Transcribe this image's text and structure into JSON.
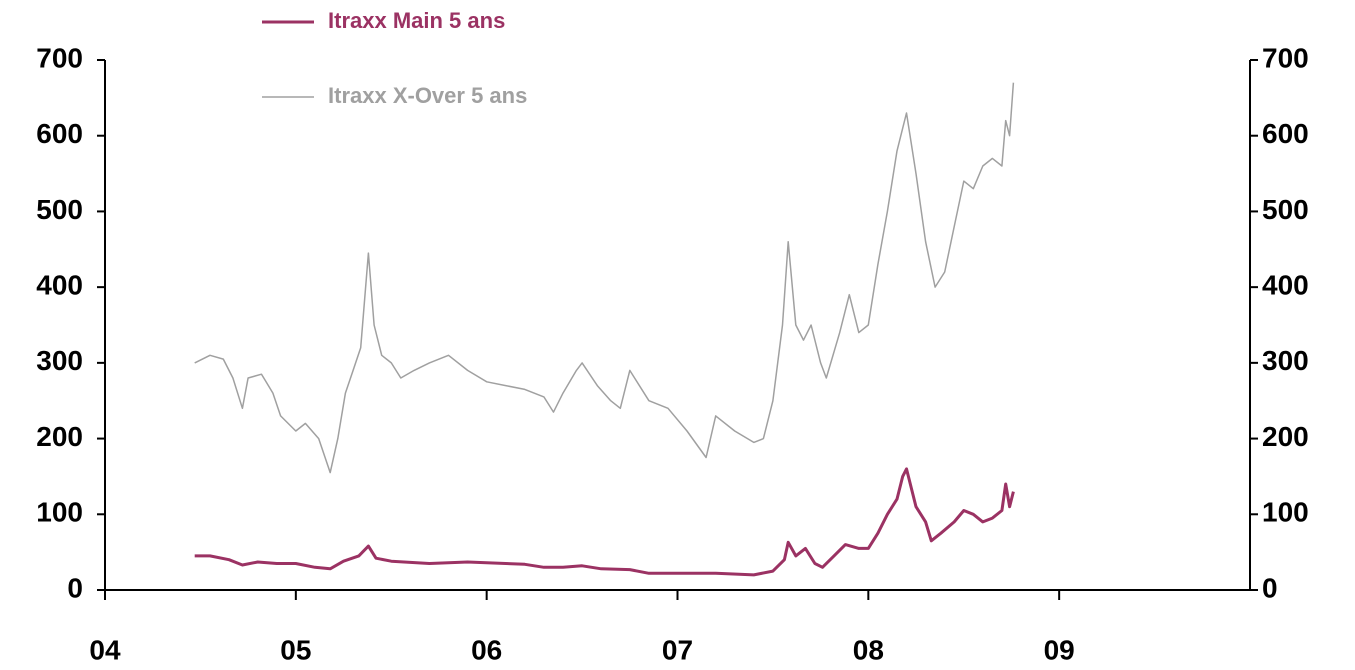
{
  "chart_data": {
    "type": "line",
    "xlim": [
      2004,
      2010
    ],
    "xticks": [
      {
        "value": 2004,
        "label": "04"
      },
      {
        "value": 2005,
        "label": "05"
      },
      {
        "value": 2006,
        "label": "06"
      },
      {
        "value": 2007,
        "label": "07"
      },
      {
        "value": 2008,
        "label": "08"
      },
      {
        "value": 2009,
        "label": "09"
      }
    ],
    "ylim": [
      0,
      700
    ],
    "yticks": [
      0,
      100,
      200,
      300,
      400,
      500,
      600,
      700
    ],
    "y2lim": [
      0,
      700
    ],
    "y2ticks": [
      0,
      100,
      200,
      300,
      400,
      500,
      600,
      700
    ],
    "legend": "upper left",
    "series": [
      {
        "name": "Itraxx Main 5 ans",
        "color": "#9b3263",
        "x": [
          2004.47,
          2004.55,
          2004.65,
          2004.72,
          2004.8,
          2004.9,
          2005.0,
          2005.1,
          2005.18,
          2005.25,
          2005.33,
          2005.38,
          2005.42,
          2005.5,
          2005.7,
          2005.9,
          2006.1,
          2006.2,
          2006.3,
          2006.4,
          2006.5,
          2006.6,
          2006.75,
          2006.85,
          2007.0,
          2007.2,
          2007.4,
          2007.5,
          2007.56,
          2007.58,
          2007.62,
          2007.67,
          2007.72,
          2007.76,
          2007.82,
          2007.88,
          2007.95,
          2008.0,
          2008.05,
          2008.1,
          2008.15,
          2008.18,
          2008.2,
          2008.25,
          2008.3,
          2008.33,
          2008.38,
          2008.45,
          2008.5,
          2008.55,
          2008.6,
          2008.65,
          2008.7,
          2008.72,
          2008.74,
          2008.76
        ],
        "values": [
          45,
          45,
          40,
          33,
          37,
          35,
          35,
          30,
          28,
          38,
          45,
          58,
          42,
          38,
          35,
          37,
          35,
          34,
          30,
          30,
          32,
          28,
          27,
          22,
          22,
          22,
          20,
          25,
          40,
          63,
          45,
          55,
          35,
          30,
          45,
          60,
          55,
          55,
          75,
          100,
          120,
          150,
          160,
          110,
          90,
          65,
          75,
          90,
          105,
          100,
          90,
          95,
          105,
          140,
          110,
          130
        ]
      },
      {
        "name": "Itraxx X-Over 5 ans",
        "color": "#a0a0a0",
        "x": [
          2004.47,
          2004.55,
          2004.62,
          2004.67,
          2004.72,
          2004.75,
          2004.82,
          2004.88,
          2004.92,
          2005.0,
          2005.05,
          2005.12,
          2005.18,
          2005.22,
          2005.26,
          2005.3,
          2005.34,
          2005.38,
          2005.41,
          2005.45,
          2005.5,
          2005.55,
          2005.62,
          2005.7,
          2005.8,
          2005.9,
          2006.0,
          2006.1,
          2006.2,
          2006.3,
          2006.35,
          2006.4,
          2006.47,
          2006.5,
          2006.58,
          2006.65,
          2006.7,
          2006.75,
          2006.85,
          2006.95,
          2007.05,
          2007.15,
          2007.2,
          2007.3,
          2007.4,
          2007.45,
          2007.5,
          2007.55,
          2007.58,
          2007.62,
          2007.66,
          2007.7,
          2007.75,
          2007.78,
          2007.85,
          2007.9,
          2007.95,
          2008.0,
          2008.05,
          2008.1,
          2008.15,
          2008.2,
          2008.25,
          2008.3,
          2008.35,
          2008.4,
          2008.45,
          2008.5,
          2008.55,
          2008.6,
          2008.65,
          2008.7,
          2008.72,
          2008.74,
          2008.76
        ],
        "values": [
          300,
          310,
          305,
          280,
          240,
          280,
          285,
          260,
          230,
          210,
          220,
          200,
          155,
          200,
          260,
          290,
          320,
          445,
          350,
          310,
          300,
          280,
          290,
          300,
          310,
          290,
          275,
          270,
          265,
          255,
          235,
          260,
          290,
          300,
          270,
          250,
          240,
          290,
          250,
          240,
          210,
          175,
          230,
          210,
          195,
          200,
          250,
          350,
          460,
          350,
          330,
          350,
          300,
          280,
          340,
          390,
          340,
          350,
          430,
          500,
          580,
          630,
          550,
          460,
          400,
          420,
          480,
          540,
          530,
          560,
          570,
          560,
          620,
          600,
          670
        ]
      }
    ]
  }
}
